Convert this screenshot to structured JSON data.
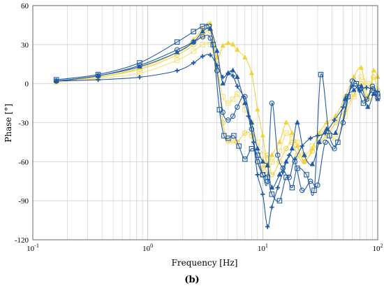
{
  "chart_data": {
    "type": "line",
    "xlabel": "Frequency  [Hz]",
    "ylabel": "Phase  [°]",
    "caption": "(b)",
    "x_scale": "log",
    "xlim": [
      0.1,
      100
    ],
    "ylim": [
      -120,
      60
    ],
    "x_ticks": [
      {
        "value": 0.1,
        "base": "10",
        "exp": "-1"
      },
      {
        "value": 1,
        "base": "10",
        "exp": "0"
      },
      {
        "value": 10,
        "base": "10",
        "exp": "1"
      },
      {
        "value": 100,
        "base": "10",
        "exp": "2"
      }
    ],
    "y_ticks": [
      60,
      30,
      0,
      -30,
      -60,
      -90,
      -120
    ],
    "grid": true,
    "colors": {
      "blue": "#1f5aa6",
      "yellow": "#f2d23c",
      "light_yellow": "#f6e07a"
    },
    "series": [
      {
        "color": "#1f5aa6",
        "marker": "square",
        "x": [
          0.16,
          0.37,
          0.85,
          1.8,
          2.5,
          3.0,
          3.4,
          3.7,
          4.2,
          4.6,
          5.0,
          5.6,
          6.2,
          7.0,
          8.0,
          9.0,
          10.0,
          11.0,
          12.0,
          14.0,
          16.0,
          18.0,
          20.0,
          24.0,
          28.0,
          32.0,
          38.0,
          45.0,
          55.0,
          65.0,
          75.0,
          90.0,
          100.0
        ],
        "y": [
          3,
          7,
          16,
          32,
          40,
          44,
          44,
          30,
          -20,
          -40,
          -42,
          -40,
          -48,
          -58,
          -50,
          -55,
          -70,
          -72,
          -85,
          -90,
          -72,
          -80,
          -65,
          -70,
          -82,
          7,
          -40,
          -45,
          -10,
          0,
          -15,
          -5,
          -10
        ]
      },
      {
        "color": "#1f5aa6",
        "marker": "circle",
        "x": [
          0.16,
          0.37,
          0.85,
          1.8,
          2.5,
          3.0,
          3.5,
          4.0,
          4.5,
          5.0,
          5.5,
          6.0,
          7.0,
          8.0,
          9.0,
          10.0,
          11.0,
          12.0,
          13.5,
          15.0,
          17.0,
          19.0,
          22.0,
          26.0,
          30.0,
          35.0,
          42.0,
          50.0,
          60.0,
          70.0,
          80.0,
          90.0,
          100.0
        ],
        "y": [
          2,
          6,
          14,
          26,
          32,
          36,
          35,
          10,
          -22,
          -28,
          -25,
          -18,
          -10,
          -35,
          -60,
          -70,
          -75,
          -15,
          -55,
          -65,
          -72,
          -60,
          -82,
          -75,
          -78,
          -45,
          -50,
          -30,
          2,
          -5,
          -12,
          -2,
          -8
        ]
      },
      {
        "color": "#1f5aa6",
        "marker": "triangle",
        "x": [
          0.16,
          0.37,
          0.85,
          1.8,
          2.5,
          3.0,
          3.5,
          4.0,
          4.5,
          5.0,
          5.5,
          6.0,
          7.0,
          8.0,
          9.0,
          10.0,
          11.0,
          12.0,
          14.0,
          16.0,
          18.0,
          20.0,
          23.0,
          27.0,
          31.0,
          36.0,
          43.0,
          52.0,
          62.0,
          72.0,
          82.0,
          92.0,
          100.0
        ],
        "y": [
          2,
          6,
          13,
          24,
          32,
          40,
          42,
          25,
          0,
          8,
          10,
          5,
          -15,
          -30,
          -50,
          -60,
          -63,
          -80,
          -70,
          -60,
          -50,
          -30,
          -55,
          -62,
          -45,
          -35,
          -38,
          -12,
          -5,
          -2,
          -18,
          -8,
          -12
        ]
      },
      {
        "color": "#1f5aa6",
        "marker": "plus",
        "x": [
          0.16,
          0.37,
          0.85,
          1.8,
          2.5,
          3.0,
          3.5,
          4.0,
          4.5,
          5.0,
          5.5,
          6.0,
          6.8,
          7.5,
          8.3,
          9.0,
          10.0,
          11.0,
          12.0,
          13.5,
          15.0,
          17.0,
          19.0,
          22.0,
          26.0,
          30.0,
          35.0,
          42.0,
          50.0,
          60.0,
          70.0,
          80.0,
          100.0
        ],
        "y": [
          2,
          3,
          5,
          10,
          16,
          21,
          22,
          14,
          5,
          8,
          6,
          -2,
          -10,
          -25,
          -45,
          -70,
          -85,
          -110,
          -95,
          -80,
          -68,
          -55,
          -58,
          -48,
          -42,
          -40,
          -38,
          -28,
          -18,
          -2,
          -5,
          -3,
          -6
        ]
      },
      {
        "color": "#f2d23c",
        "marker": "triangle",
        "x": [
          0.16,
          0.37,
          0.85,
          1.8,
          2.5,
          3.0,
          3.5,
          4.0,
          4.5,
          5.0,
          5.5,
          6.0,
          7.0,
          8.0,
          9.0,
          10.0,
          11.0,
          12.0,
          14.0,
          16.0,
          18.0,
          20.0,
          23.0,
          27.0,
          31.0,
          36.0,
          43.0,
          52.0,
          62.0,
          72.0,
          82.0,
          92.0,
          100.0
        ],
        "y": [
          2,
          5,
          12,
          24,
          34,
          42,
          46,
          20,
          29,
          31,
          30,
          26,
          20,
          8,
          -20,
          -40,
          -62,
          -55,
          -45,
          -30,
          -38,
          -48,
          -60,
          -50,
          -38,
          -30,
          -25,
          -10,
          5,
          12,
          -10,
          10,
          5
        ]
      },
      {
        "color": "#f2d23c",
        "marker": "circle",
        "x": [
          0.16,
          0.37,
          0.85,
          1.8,
          2.5,
          3.0,
          3.5,
          4.0,
          4.5,
          5.0,
          5.5,
          6.0,
          7.0,
          8.0,
          9.0,
          10.0,
          11.0,
          12.0,
          14.0,
          16.0,
          18.0,
          20.0,
          23.0,
          27.0,
          31.0,
          36.0,
          43.0,
          52.0,
          62.0,
          72.0,
          82.0,
          92.0,
          100.0
        ],
        "y": [
          2,
          5,
          11,
          22,
          30,
          37,
          40,
          15,
          -30,
          -44,
          -44,
          -45,
          -38,
          -40,
          -60,
          -65,
          -55,
          -70,
          -60,
          -50,
          -45,
          -55,
          -60,
          -52,
          -45,
          -40,
          -30,
          -20,
          -8,
          0,
          -12,
          5,
          -5
        ]
      },
      {
        "color": "#f6e07a",
        "marker": "square",
        "x": [
          0.16,
          0.37,
          0.85,
          1.8,
          2.5,
          3.0,
          3.5,
          4.0,
          4.5,
          5.0,
          5.5,
          6.0,
          7.0,
          8.0,
          9.0,
          10.0,
          11.0,
          12.0,
          14.0,
          16.0,
          18.0,
          20.0,
          23.0,
          27.0,
          31.0,
          36.0,
          43.0,
          52.0,
          62.0,
          72.0,
          82.0,
          92.0,
          100.0
        ],
        "y": [
          1,
          4,
          8,
          18,
          25,
          30,
          30,
          12,
          -10,
          -15,
          -12,
          -8,
          -20,
          -30,
          -45,
          -55,
          -70,
          -60,
          -52,
          -38,
          -42,
          -45,
          -55,
          -48,
          -40,
          -35,
          -42,
          -25,
          -10,
          5,
          0,
          -5,
          -10
        ]
      }
    ]
  }
}
